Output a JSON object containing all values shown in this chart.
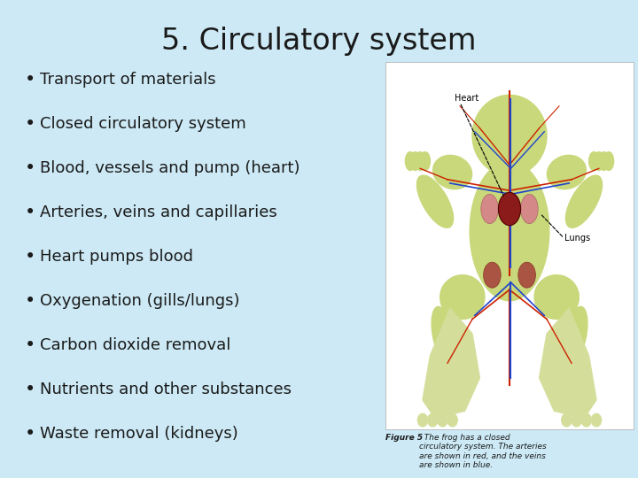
{
  "title": "5. Circulatory system",
  "title_fontsize": 24,
  "title_color": "#1a1a1a",
  "background_color": "#cce9f5",
  "bullet_points": [
    "Transport of materials",
    "Closed circulatory system",
    "Blood, vessels and pump (heart)",
    "Arteries, veins and capillaries",
    "Heart pumps blood",
    "Oxygenation (gills/lungs)",
    "Carbon dioxide removal",
    "Nutrients and other substances",
    "Waste removal (kidneys)"
  ],
  "bullet_fontsize": 13,
  "bullet_color": "#1a1a1a",
  "bullet_symbol": "•",
  "figure_caption_bold": "Figure 5",
  "figure_caption_rest": "  The frog has a closed\ncirculatory system. The arteries\nare shown in red, and the veins\nare shown in blue.",
  "caption_fontsize": 6.5,
  "image_bg_color": "#ffffff",
  "frog_body_color": "#c8d87a",
  "frog_leg_color": "#d4de9a",
  "artery_color": "#cc2200",
  "vein_color": "#2244cc",
  "heart_color": "#8B1a1a",
  "lung_color": "#d48888"
}
